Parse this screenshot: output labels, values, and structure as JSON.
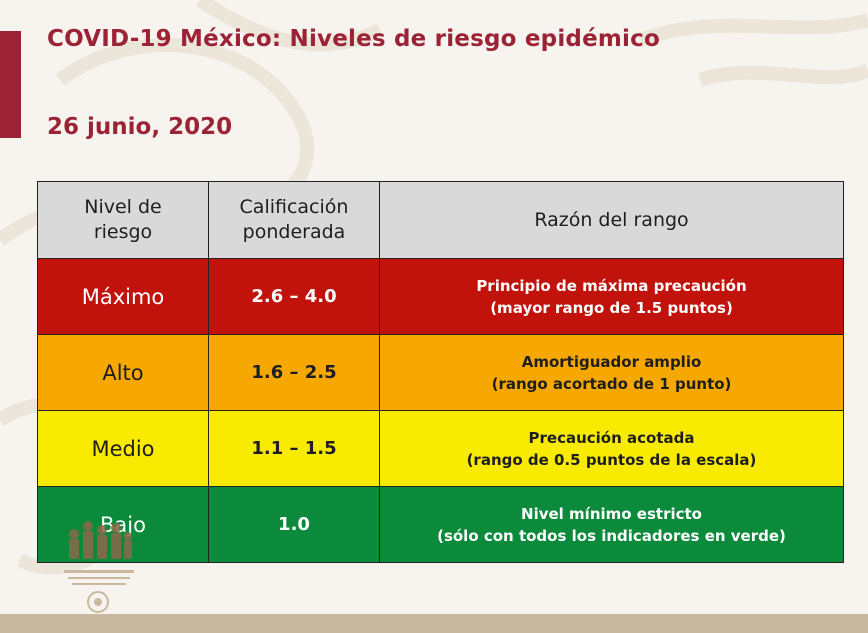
{
  "header": {
    "title": "COVID-19 México: Niveles de riesgo epidémico",
    "date": "26 junio, 2020"
  },
  "table": {
    "headers": {
      "level": "Nivel de riesgo",
      "score": "Calificación ponderada",
      "reason": "Razón del rango"
    },
    "rows": [
      {
        "level": "Máximo",
        "score": "2.6 – 4.0",
        "reason_line1": "Principio de máxima precaución",
        "reason_line2": "(mayor rango de 1.5 puntos)",
        "color": "#c1120c",
        "text_color": "#ffffff"
      },
      {
        "level": "Alto",
        "score": "1.6 – 2.5",
        "reason_line1": "Amortiguador amplio",
        "reason_line2": "(rango acortado de 1 punto)",
        "color": "#f6a800",
        "text_color": "#1e1e1e"
      },
      {
        "level": "Medio",
        "score": "1.1 – 1.5",
        "reason_line1": "Precaución acotada",
        "reason_line2": "(rango de 0.5 puntos de la escala)",
        "color": "#f9eb00",
        "text_color": "#1e1e1e"
      },
      {
        "level": "Bajo",
        "score": "1.0",
        "reason_line1": "Nivel mínimo estricto",
        "reason_line2": "(sólo con todos los indicadores en verde)",
        "color": "#0a8a3a",
        "text_color": "#ffffff"
      }
    ]
  },
  "colors": {
    "accent": "#9b2335",
    "header_bg": "#d9d9d9"
  }
}
